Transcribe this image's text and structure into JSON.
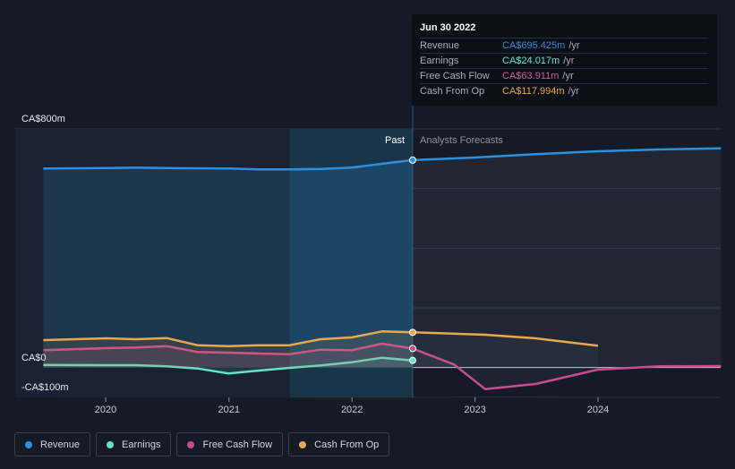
{
  "chart_data": {
    "type": "line",
    "y_axis": {
      "top_label": "CA$800m",
      "zero_label": "CA$0",
      "bottom_label": "-CA$100m",
      "ylim": [
        -100,
        800
      ]
    },
    "x_ticks": [
      "2020",
      "2021",
      "2022",
      "2023",
      "2024"
    ],
    "region_labels": {
      "past": "Past",
      "forecast": "Analysts Forecasts"
    },
    "divider_date": "2022-06-30",
    "series": [
      {
        "name": "Revenue",
        "color": "#2d8fe0",
        "points": [
          [
            "2019-06-30",
            667
          ],
          [
            "2019-12-31",
            669
          ],
          [
            "2020-03-31",
            670
          ],
          [
            "2020-06-30",
            669
          ],
          [
            "2020-12-31",
            667
          ],
          [
            "2021-03-31",
            664
          ],
          [
            "2021-06-30",
            664
          ],
          [
            "2021-09-30",
            666
          ],
          [
            "2021-12-31",
            670
          ],
          [
            "2022-03-31",
            683
          ],
          [
            "2022-06-30",
            695.4
          ]
        ],
        "forecast": [
          [
            "2022-06-30",
            695.4
          ],
          [
            "2022-12-31",
            704
          ],
          [
            "2023-06-30",
            715
          ],
          [
            "2023-12-31",
            725
          ],
          [
            "2024-06-30",
            731
          ],
          [
            "2024-12-31",
            735
          ]
        ]
      },
      {
        "name": "Earnings",
        "color": "#5ee6c8",
        "points": [
          [
            "2019-06-30",
            9
          ],
          [
            "2019-12-31",
            8
          ],
          [
            "2020-03-31",
            8
          ],
          [
            "2020-06-30",
            4
          ],
          [
            "2020-09-30",
            -3
          ],
          [
            "2020-12-31",
            -20
          ],
          [
            "2021-03-31",
            -10
          ],
          [
            "2021-06-30",
            -1
          ],
          [
            "2021-09-30",
            7
          ],
          [
            "2021-12-31",
            18
          ],
          [
            "2022-03-31",
            33
          ],
          [
            "2022-06-30",
            24.0
          ]
        ],
        "forecast": []
      },
      {
        "name": "Free Cash Flow",
        "color": "#c94d8c",
        "points": [
          [
            "2019-06-30",
            58
          ],
          [
            "2019-12-31",
            65
          ],
          [
            "2020-03-31",
            67
          ],
          [
            "2020-06-30",
            72
          ],
          [
            "2020-09-30",
            52
          ],
          [
            "2020-12-31",
            50
          ],
          [
            "2021-03-31",
            47
          ],
          [
            "2021-06-30",
            45
          ],
          [
            "2021-09-30",
            60
          ],
          [
            "2021-12-31",
            58
          ],
          [
            "2022-03-31",
            80
          ],
          [
            "2022-06-30",
            63.9
          ]
        ],
        "forecast": [
          [
            "2022-06-30",
            63.9
          ],
          [
            "2022-10-31",
            10
          ],
          [
            "2023-01-31",
            -72
          ],
          [
            "2023-06-30",
            -55
          ],
          [
            "2023-12-31",
            -7
          ],
          [
            "2024-06-30",
            4
          ],
          [
            "2024-12-31",
            5
          ]
        ]
      },
      {
        "name": "Cash From Op",
        "color": "#e8a84c",
        "points": [
          [
            "2019-06-30",
            92
          ],
          [
            "2019-12-31",
            98
          ],
          [
            "2020-03-31",
            95
          ],
          [
            "2020-06-30",
            99
          ],
          [
            "2020-09-30",
            75
          ],
          [
            "2020-12-31",
            72
          ],
          [
            "2021-03-31",
            75
          ],
          [
            "2021-06-30",
            75
          ],
          [
            "2021-09-30",
            95
          ],
          [
            "2021-12-31",
            101
          ],
          [
            "2022-03-31",
            121
          ],
          [
            "2022-06-30",
            118.0
          ]
        ],
        "forecast": [
          [
            "2022-06-30",
            118.0
          ],
          [
            "2023-01-31",
            110
          ],
          [
            "2023-06-30",
            98
          ],
          [
            "2024-01-01",
            73
          ]
        ]
      }
    ]
  },
  "tooltip": {
    "date": "Jun 30 2022",
    "rows": [
      {
        "name": "Revenue",
        "value": "CA$695.425m",
        "unit": "/yr",
        "color": "#2d8fe0"
      },
      {
        "name": "Earnings",
        "value": "CA$24.017m",
        "unit": "/yr",
        "color": "#5ee6c8"
      },
      {
        "name": "Free Cash Flow",
        "value": "CA$63.911m",
        "unit": "/yr",
        "color": "#d35a97"
      },
      {
        "name": "Cash From Op",
        "value": "CA$117.994m",
        "unit": "/yr",
        "color": "#e8a84c"
      }
    ]
  },
  "legend": [
    {
      "label": "Revenue",
      "color": "#2d8fe0"
    },
    {
      "label": "Earnings",
      "color": "#5ee6c8"
    },
    {
      "label": "Free Cash Flow",
      "color": "#c94d8c"
    },
    {
      "label": "Cash From Op",
      "color": "#e8a84c"
    }
  ]
}
